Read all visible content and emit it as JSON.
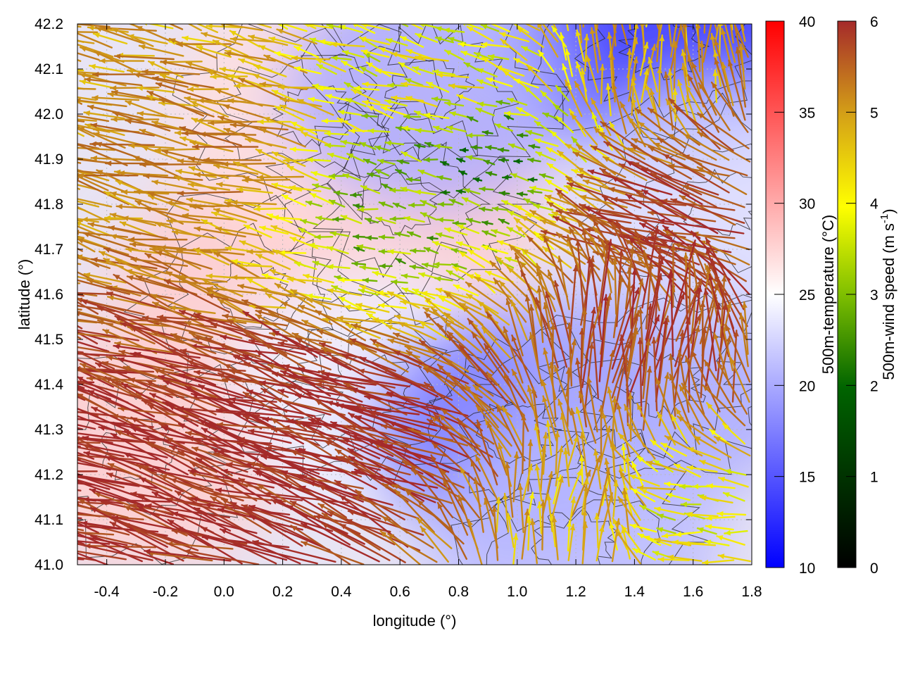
{
  "chart_data": {
    "type": "heatmap",
    "subtype": "temperature field with wind-vector overlay and contour lines",
    "xlabel": "longitude (°)",
    "ylabel": "latitude (°)",
    "xlim": [
      -0.5,
      1.8
    ],
    "ylim": [
      41.0,
      42.2
    ],
    "x_ticks": [
      "-0.4",
      "-0.2",
      "0.0",
      "0.2",
      "0.4",
      "0.6",
      "0.8",
      "1.0",
      "1.2",
      "1.4",
      "1.6",
      "1.8"
    ],
    "x_tick_values": [
      -0.4,
      -0.2,
      0.0,
      0.2,
      0.4,
      0.6,
      0.8,
      1.0,
      1.2,
      1.4,
      1.6,
      1.8
    ],
    "y_ticks": [
      "41.0",
      "41.1",
      "41.2",
      "41.3",
      "41.4",
      "41.5",
      "41.6",
      "41.7",
      "41.8",
      "41.9",
      "42.0",
      "42.1",
      "42.2"
    ],
    "y_tick_values": [
      41.0,
      41.1,
      41.2,
      41.3,
      41.4,
      41.5,
      41.6,
      41.7,
      41.8,
      41.9,
      42.0,
      42.1,
      42.2
    ],
    "grid": true,
    "temperature_colorbar": {
      "label": "500m-temperature (°C)",
      "range": [
        10,
        40
      ],
      "ticks": [
        "10",
        "15",
        "20",
        "25",
        "30",
        "35",
        "40"
      ],
      "tick_values": [
        10,
        15,
        20,
        25,
        30,
        35,
        40
      ],
      "colors": [
        "#0000ff",
        "#ffffff",
        "#ff0000"
      ]
    },
    "wind_colorbar": {
      "label_main": "500m-wind speed (m s",
      "label_sup": "-1",
      "label_end": ")",
      "range": [
        0,
        6
      ],
      "ticks": [
        "0",
        "1",
        "2",
        "3",
        "4",
        "5",
        "6"
      ],
      "tick_values": [
        0,
        1,
        2,
        3,
        4,
        5,
        6
      ],
      "colors": [
        "#000000",
        "#006400",
        "#7fbf00",
        "#ffff00",
        "#d4a017",
        "#b5651d",
        "#a52a2a"
      ]
    },
    "temperature_regions": [
      {
        "lon": -0.3,
        "lat": 41.25,
        "temp": 28
      },
      {
        "lon": 0.1,
        "lat": 41.6,
        "temp": 28
      },
      {
        "lon": 0.6,
        "lat": 41.8,
        "temp": 28
      },
      {
        "lon": 0.3,
        "lat": 42.0,
        "temp": 27
      },
      {
        "lon": 0.5,
        "lat": 41.4,
        "temp": 24
      },
      {
        "lon": 1.0,
        "lat": 41.3,
        "temp": 17
      },
      {
        "lon": 1.5,
        "lat": 42.15,
        "temp": 13
      },
      {
        "lon": 0.7,
        "lat": 42.05,
        "temp": 20
      },
      {
        "lon": 1.5,
        "lat": 41.4,
        "temp": 20
      },
      {
        "lon": 1.2,
        "lat": 41.05,
        "temp": 21
      },
      {
        "lon": 1.7,
        "lat": 41.8,
        "temp": 23
      }
    ],
    "wind_flow": [
      {
        "lon": -0.4,
        "lat": 41.2,
        "u": -1.0,
        "v": 0.25,
        "speed": 6
      },
      {
        "lon": 0.2,
        "lat": 41.3,
        "u": -1.0,
        "v": 0.3,
        "speed": 6
      },
      {
        "lon": 0.6,
        "lat": 41.25,
        "u": -1.0,
        "v": 0.35,
        "speed": 6
      },
      {
        "lon": 0.0,
        "lat": 41.9,
        "u": -1.0,
        "v": 0.2,
        "speed": 4.5
      },
      {
        "lon": 0.6,
        "lat": 41.75,
        "u": -0.5,
        "v": 0.1,
        "speed": 2
      },
      {
        "lon": 0.9,
        "lat": 41.9,
        "u": -0.6,
        "v": 0.1,
        "speed": 1.5
      },
      {
        "lon": 0.8,
        "lat": 42.1,
        "u": -0.7,
        "v": 0.2,
        "speed": 3
      },
      {
        "lon": 1.45,
        "lat": 41.45,
        "u": 0.2,
        "v": 1.0,
        "speed": 5.5
      },
      {
        "lon": 1.2,
        "lat": 41.1,
        "u": 0.15,
        "v": 1.0,
        "speed": 3.8
      },
      {
        "lon": 1.65,
        "lat": 41.1,
        "u": -1.0,
        "v": 0.1,
        "speed": 3
      },
      {
        "lon": 1.6,
        "lat": 41.75,
        "u": -1.0,
        "v": 0.3,
        "speed": 5.5
      },
      {
        "lon": 1.45,
        "lat": 42.1,
        "u": 0.0,
        "v": 1.0,
        "speed": 4
      }
    ]
  },
  "colors": {
    "contour": "#222222",
    "grid": "#bbbbbb"
  }
}
